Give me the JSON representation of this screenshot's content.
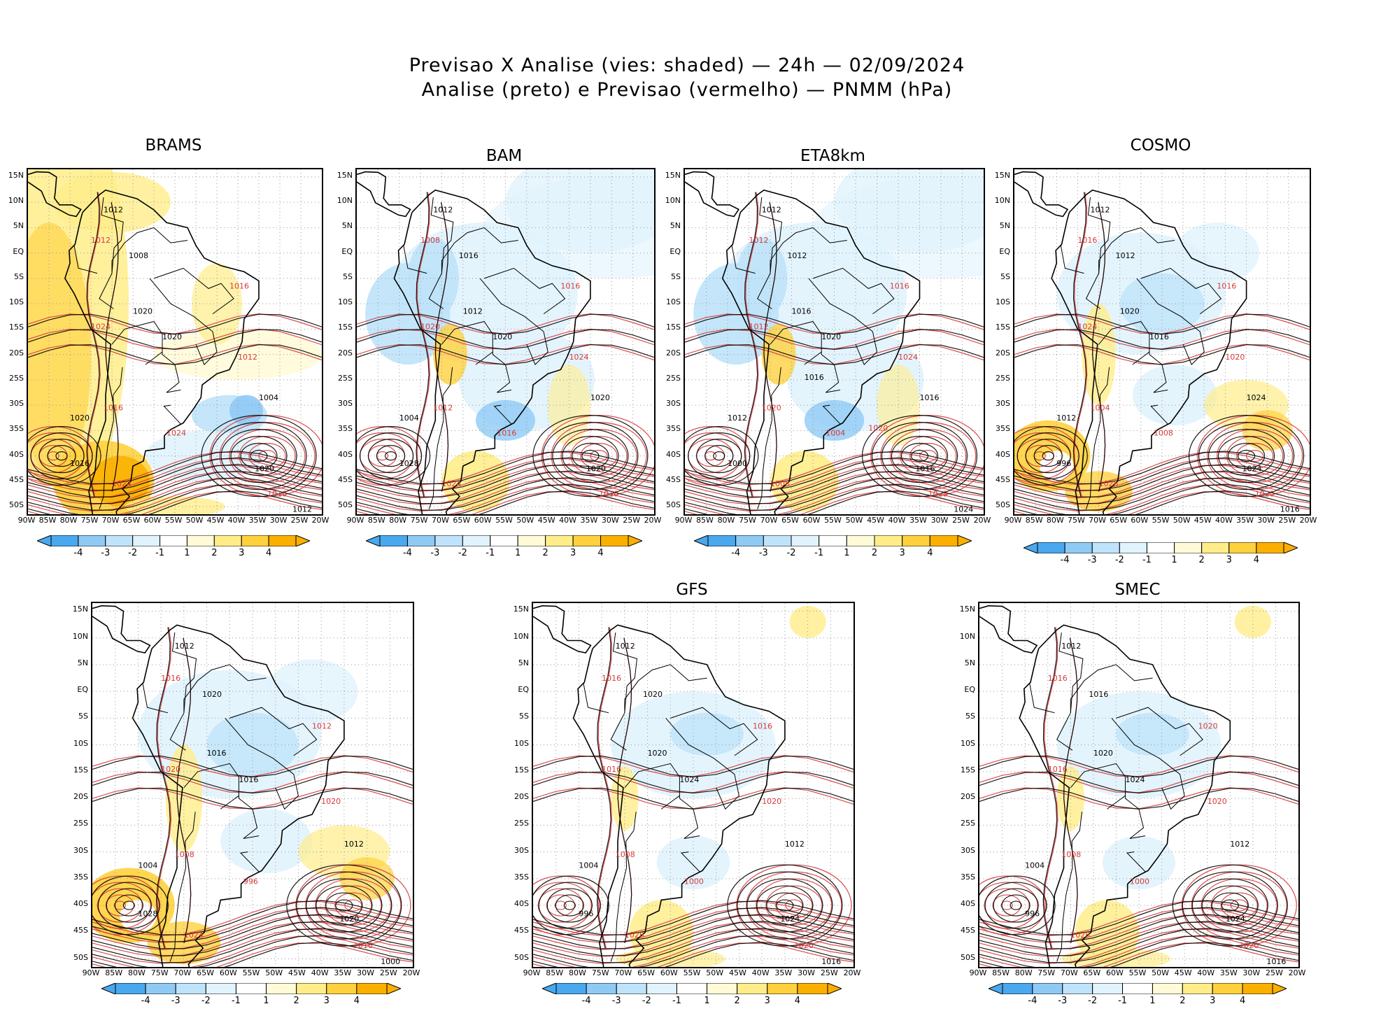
{
  "title_line1": "Previsao X Analise (vies: shaded) — 24h — 02/09/2024",
  "title_line2": "Analise (preto) e Previsao (vermelho) — PNMM (hPa)",
  "colors": {
    "analysis_contour": "#000000",
    "forecast_contour": "#d63a3a",
    "bias_neg4": "#4aa8ee",
    "bias_neg3": "#8fcaf5",
    "bias_neg2": "#bfe3fa",
    "bias_neg1": "#e1f3fd",
    "bias_pos1": "#fffbd8",
    "bias_pos2": "#ffed8a",
    "bias_pos3": "#ffd13d",
    "bias_pos4": "#fbb000"
  },
  "lat_ticks": [
    "15N",
    "10N",
    "5N",
    "EQ",
    "5S",
    "10S",
    "15S",
    "20S",
    "25S",
    "30S",
    "35S",
    "40S",
    "45S",
    "50S"
  ],
  "lon_ticks": [
    "90W",
    "85W",
    "80W",
    "75W",
    "70W",
    "65W",
    "60W",
    "55W",
    "50W",
    "45W",
    "40W",
    "35W",
    "30W",
    "25W",
    "20W"
  ],
  "colorbar_labels": [
    "-4",
    "-3",
    "-2",
    "-1",
    "1",
    "2",
    "3",
    "4"
  ],
  "panels": [
    {
      "name": "BRAMS",
      "title": "BRAMS",
      "bias": "warm",
      "labels": [
        "1012",
        "1012",
        "1008",
        "1016",
        "1020",
        "1024",
        "1020",
        "1012",
        "1004",
        "1016",
        "1020",
        "1024",
        "1016",
        "1024",
        "1020",
        "1016",
        "1012"
      ]
    },
    {
      "name": "BAM",
      "title": "BAM",
      "bias": "cool",
      "labels": [
        "1012",
        "1008",
        "1016",
        "1016",
        "1012",
        "1020",
        "1020",
        "1024",
        "1020",
        "1012",
        "1004",
        "1016",
        "1028",
        "1024",
        "1020",
        "1016"
      ]
    },
    {
      "name": "ETA8km",
      "title": "ETA8km",
      "bias": "cool",
      "labels": [
        "1012",
        "1012",
        "1012",
        "1016",
        "1016",
        "1012",
        "1020",
        "1024",
        "1016",
        "1020",
        "1012",
        "1004",
        "1000",
        "1008",
        "1016",
        "1028",
        "1024",
        "1020",
        "1016"
      ]
    },
    {
      "name": "COSMO",
      "title": "COSMO",
      "bias": "mixed",
      "labels": [
        "1012",
        "1016",
        "1012",
        "1016",
        "1020",
        "1024",
        "1016",
        "1020",
        "1024",
        "1004",
        "1012",
        "1008",
        "996",
        "1028",
        "1024",
        "1020",
        "1016"
      ]
    },
    {
      "name": "unnamed",
      "title": "",
      "bias": "mixed",
      "labels": [
        "1012",
        "1016",
        "1020",
        "1012",
        "1016",
        "1020",
        "1016",
        "1020",
        "1012",
        "1008",
        "1004",
        "996",
        "1028",
        "1024",
        "1020",
        "1016",
        "1000"
      ]
    },
    {
      "name": "GFS",
      "title": "GFS",
      "bias": "light",
      "labels": [
        "1012",
        "1016",
        "1020",
        "1016",
        "1020",
        "1016",
        "1024",
        "1020",
        "1012",
        "1008",
        "1004",
        "1000",
        "996",
        "1028",
        "1024",
        "1020",
        "1016"
      ]
    },
    {
      "name": "SMEC",
      "title": "SMEC",
      "bias": "light",
      "labels": [
        "1012",
        "1016",
        "1016",
        "1020",
        "1020",
        "1016",
        "1024",
        "1020",
        "1012",
        "1008",
        "1004",
        "1000",
        "996",
        "1028",
        "1024",
        "1020",
        "1016"
      ]
    }
  ]
}
